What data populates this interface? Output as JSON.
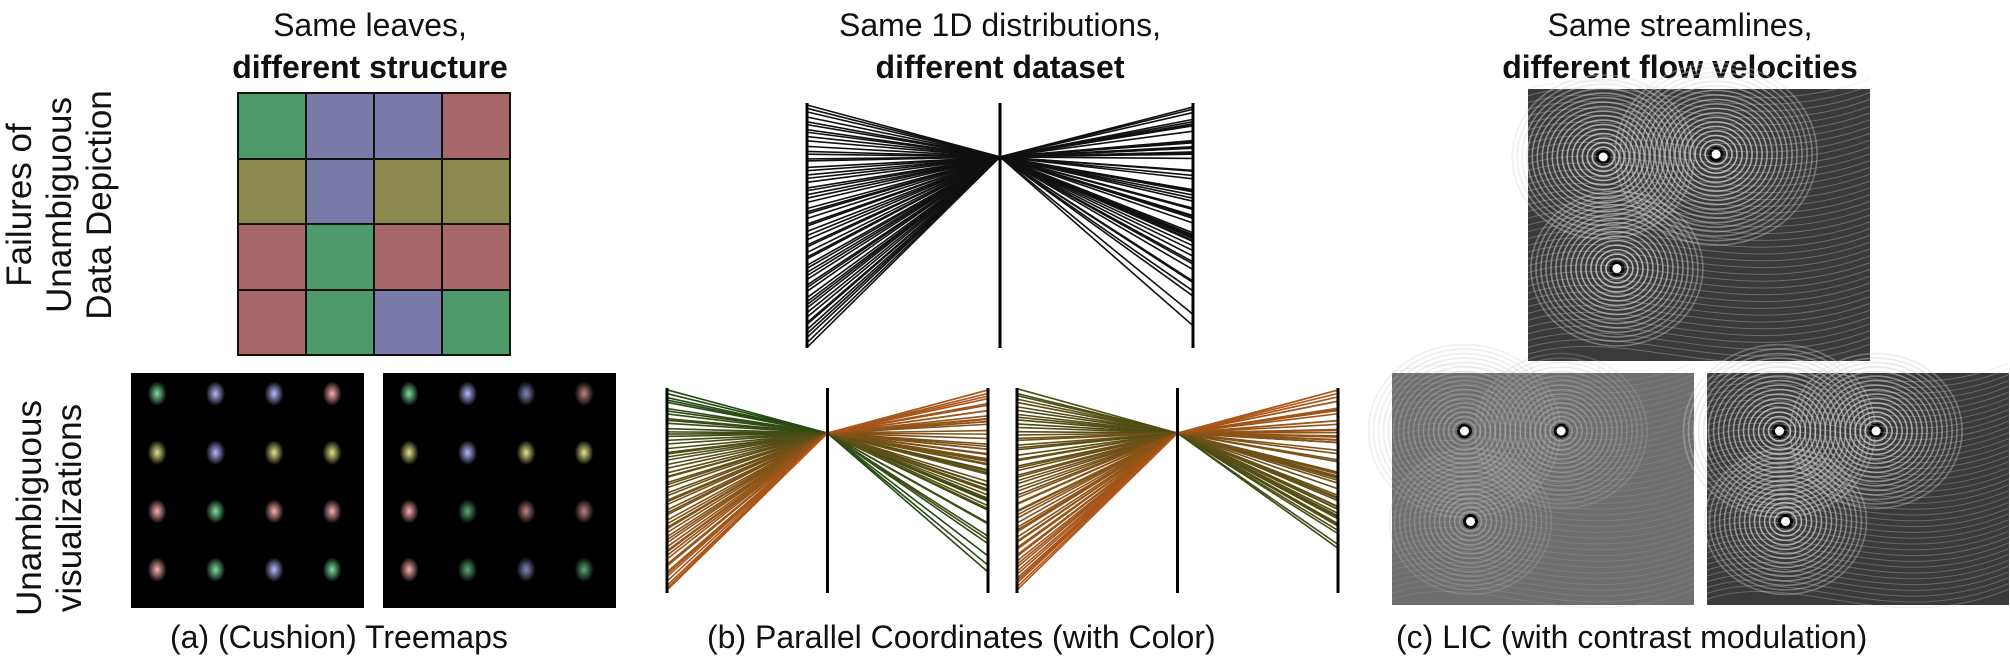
{
  "row_labels": {
    "top": [
      "Failures of",
      "Unambiguous",
      "Data Depiction"
    ],
    "bottom": [
      "Unambiguous",
      "visualizations"
    ]
  },
  "columns": [
    {
      "title_plain": "Same leaves,",
      "title_bold": "different structure",
      "caption": "(a)  (Cushion) Treemaps"
    },
    {
      "title_plain": "Same 1D distributions,",
      "title_bold": "different dataset",
      "caption": "(b)  Parallel Coordinates (with Color)"
    },
    {
      "title_plain": "Same streamlines,",
      "title_bold": "different flow velocities",
      "caption": "(c)  LIC (with contrast modulation)"
    }
  ],
  "treemap": {
    "palette": {
      "G": "#4f9a6b",
      "P": "#7a7aa8",
      "R": "#a66868",
      "O": "#8a8a4e"
    },
    "cells": [
      [
        "G",
        "P",
        "P",
        "R"
      ],
      [
        "O",
        "P",
        "O",
        "O"
      ],
      [
        "R",
        "G",
        "R",
        "R"
      ],
      [
        "R",
        "G",
        "P",
        "G"
      ]
    ],
    "cushion_colors": {
      "G": "#7fe0a0",
      "P": "#b8b8ff",
      "R": "#ffb0b0",
      "O": "#e6e68a"
    }
  },
  "parallel_coords": {
    "line_count": 60,
    "colors": {
      "low": "#1f4a12",
      "high": "#b0561a"
    }
  }
}
